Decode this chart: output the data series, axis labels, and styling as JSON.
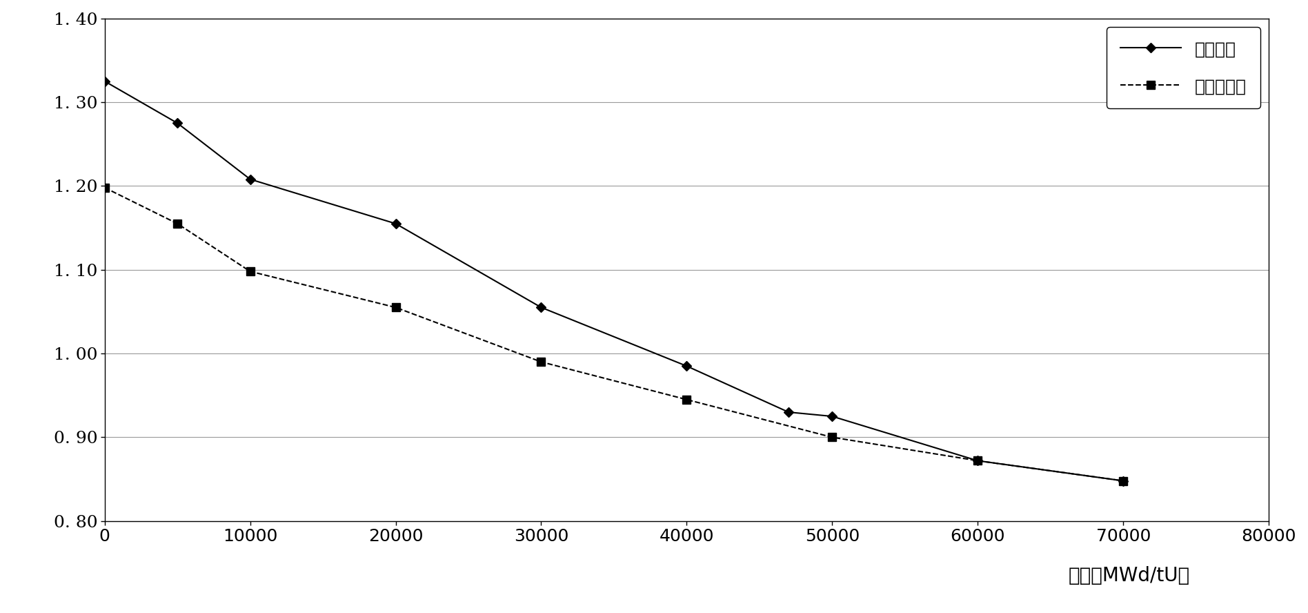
{
  "line1_label": "全铀芯块",
  "line2_label": "内外圈加錆",
  "line1_x": [
    0,
    5000,
    10000,
    20000,
    30000,
    40000,
    47000,
    50000,
    60000,
    70000
  ],
  "line1_y": [
    1.325,
    1.275,
    1.208,
    1.155,
    1.055,
    0.985,
    0.93,
    0.925,
    0.872,
    0.848
  ],
  "line2_x": [
    0,
    5000,
    10000,
    20000,
    30000,
    40000,
    50000,
    60000,
    70000
  ],
  "line2_y": [
    1.198,
    1.155,
    1.098,
    1.055,
    0.99,
    0.945,
    0.9,
    0.872,
    0.848
  ],
  "xlabel": "燃耗（MWd/tU）",
  "xlim": [
    0,
    80000
  ],
  "ylim": [
    0.8,
    1.4
  ],
  "xticks": [
    0,
    10000,
    20000,
    30000,
    40000,
    50000,
    60000,
    70000,
    80000
  ],
  "yticks": [
    0.8,
    0.9,
    1.0,
    1.1,
    1.2,
    1.3,
    1.4
  ],
  "ytick_labels": [
    "0. 80",
    "0. 90",
    "1. 00",
    "1. 10",
    "1. 20",
    "1. 30",
    "1. 40"
  ],
  "line_color": "#000000",
  "background_color": "#ffffff",
  "grid_color": "#999999",
  "marker1": "D",
  "marker2": "s",
  "linewidth": 1.5,
  "markersize1": 7,
  "markersize2": 9,
  "tick_fontsize": 18,
  "label_fontsize": 20,
  "legend_fontsize": 18
}
